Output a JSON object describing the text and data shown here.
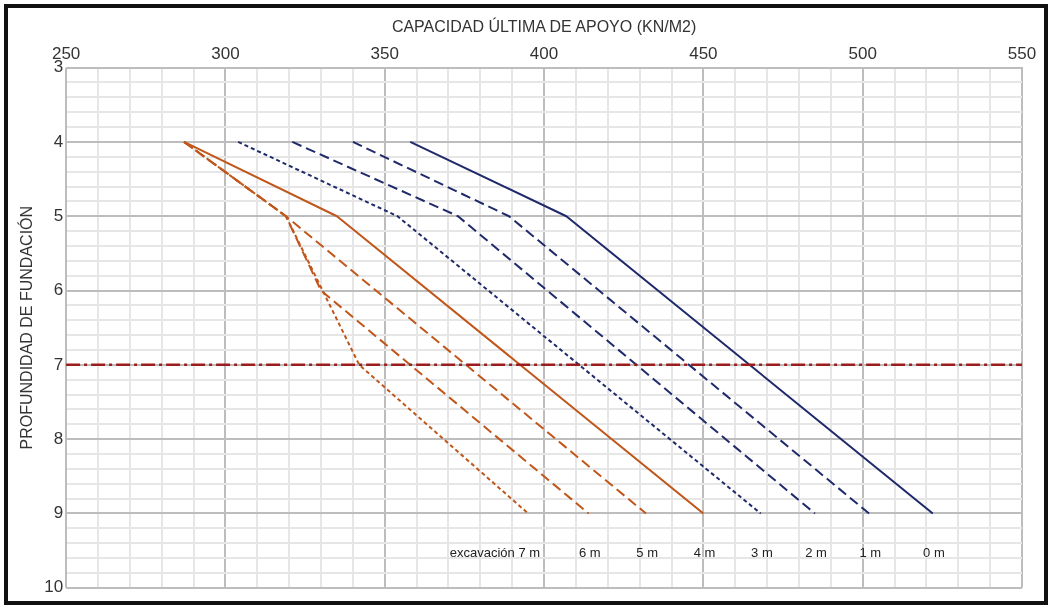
{
  "chart_data": {
    "type": "line",
    "xlabel": "CAPACIDAD ÚLTIMA DE APOYO (KN/M2)",
    "ylabel": "PROFUNDIDAD DE FUNDACIÓN",
    "xlim": [
      250,
      550
    ],
    "ylim": [
      10,
      3
    ],
    "xticks": [
      250,
      {
        "value": 260,
        "label": null
      },
      {
        "value": 270,
        "label": null
      },
      {
        "value": 280,
        "label": null
      },
      {
        "value": 290,
        "label": null
      },
      300,
      {
        "value": 310,
        "label": null
      },
      {
        "value": 320,
        "label": null
      },
      {
        "value": 330,
        "label": null
      },
      {
        "value": 340,
        "label": null
      },
      350,
      {
        "value": 360,
        "label": null
      },
      {
        "value": 370,
        "label": null
      },
      {
        "value": 380,
        "label": null
      },
      {
        "value": 390,
        "label": null
      },
      400,
      {
        "value": 410,
        "label": null
      },
      {
        "value": 420,
        "label": null
      },
      {
        "value": 430,
        "label": null
      },
      {
        "value": 440,
        "label": null
      },
      450,
      {
        "value": 460,
        "label": null
      },
      {
        "value": 470,
        "label": null
      },
      {
        "value": 480,
        "label": null
      },
      {
        "value": 490,
        "label": null
      },
      500,
      {
        "value": 510,
        "label": null
      },
      {
        "value": 520,
        "label": null
      },
      {
        "value": 530,
        "label": null
      },
      {
        "value": 540,
        "label": null
      },
      550
    ],
    "yticks": [
      3,
      {
        "value": 3.2,
        "label": null
      },
      {
        "value": 3.4,
        "label": null
      },
      {
        "value": 3.6,
        "label": null
      },
      {
        "value": 3.8,
        "label": null
      },
      4,
      {
        "value": 4.2,
        "label": null
      },
      {
        "value": 4.4,
        "label": null
      },
      {
        "value": 4.6,
        "label": null
      },
      {
        "value": 4.8,
        "label": null
      },
      5,
      {
        "value": 5.2,
        "label": null
      },
      {
        "value": 5.4,
        "label": null
      },
      {
        "value": 5.6,
        "label": null
      },
      {
        "value": 5.8,
        "label": null
      },
      6,
      {
        "value": 6.2,
        "label": null
      },
      {
        "value": 6.4,
        "label": null
      },
      {
        "value": 6.6,
        "label": null
      },
      {
        "value": 6.8,
        "label": null
      },
      7,
      {
        "value": 7.2,
        "label": null
      },
      {
        "value": 7.4,
        "label": null
      },
      {
        "value": 7.6,
        "label": null
      },
      {
        "value": 7.8,
        "label": null
      },
      8,
      {
        "value": 8.2,
        "label": null
      },
      {
        "value": 8.4,
        "label": null
      },
      {
        "value": 8.6,
        "label": null
      },
      {
        "value": 8.8,
        "label": null
      },
      9,
      {
        "value": 9.2,
        "label": null
      },
      {
        "value": 9.4,
        "label": null
      },
      {
        "value": 9.6,
        "label": null
      },
      {
        "value": 9.8,
        "label": null
      },
      10
    ],
    "grid": true,
    "legend": false,
    "marker": "none",
    "series": [
      {
        "color": "#1f2a6b",
        "line_style": "solid",
        "x": [
          358,
          407,
          522
        ],
        "values": [
          4,
          5,
          9
        ]
      },
      {
        "color": "#1f2a6b",
        "line_style": "dashed",
        "x": [
          340,
          389,
          502
        ],
        "values": [
          4,
          5,
          9
        ]
      },
      {
        "color": "#1f2a6b",
        "line_style": "dashed",
        "x": [
          321,
          373,
          485
        ],
        "values": [
          4,
          5,
          9
        ]
      },
      {
        "color": "#1f2a6b",
        "line_style": "dotted",
        "x": [
          304,
          354,
          468
        ],
        "values": [
          4,
          5,
          9
        ]
      },
      {
        "color": "#c0561a",
        "line_style": "solid",
        "x": [
          287,
          335,
          450
        ],
        "values": [
          4,
          5,
          9
        ]
      },
      {
        "color": "#c0561a",
        "line_style": "dashed",
        "x": [
          287,
          319,
          432
        ],
        "values": [
          4,
          5,
          9
        ]
      },
      {
        "color": "#c0561a",
        "line_style": "dashed",
        "x": [
          287,
          319,
          330,
          414
        ],
        "values": [
          4,
          5,
          6,
          9
        ]
      },
      {
        "color": "#c0561a",
        "line_style": "dotted",
        "x": [
          287,
          319,
          342,
          395
        ],
        "values": [
          4,
          5,
          7,
          9
        ]
      }
    ],
    "ref_lines": [
      {
        "axis": "y",
        "value": 7,
        "color": "#9b1c1c",
        "line_style": "dashed"
      }
    ],
    "annotations": [
      {
        "text": "excavación 7 m",
        "x": 395,
        "y": 9
      },
      {
        "text": "6 m",
        "x": 414,
        "y": 9
      },
      {
        "text": "5 m",
        "x": 432,
        "y": 9
      },
      {
        "text": "4 m",
        "x": 450,
        "y": 9
      },
      {
        "text": "3 m",
        "x": 468,
        "y": 9
      },
      {
        "text": "2 m",
        "x": 485,
        "y": 9
      },
      {
        "text": "1 m",
        "x": 502,
        "y": 9
      },
      {
        "text": "0 m",
        "x": 522,
        "y": 9
      }
    ]
  }
}
